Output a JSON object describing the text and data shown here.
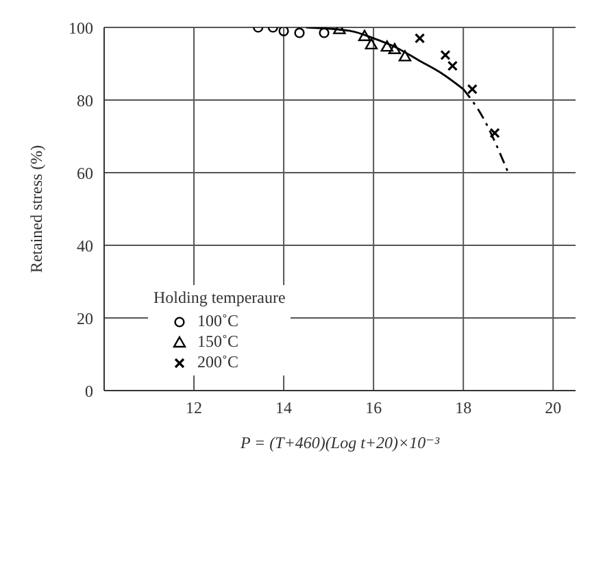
{
  "chart_data": {
    "type": "scatter",
    "xlabel": "P = (T+460)(Log t+20)×10⁻³",
    "ylabel": "Retained stress (%)",
    "legend_title": "Holding temperaure",
    "xlim": [
      10,
      20.5
    ],
    "xticks": [
      12,
      14,
      16,
      18,
      20
    ],
    "ylim": [
      0,
      100
    ],
    "yticks": [
      0,
      20,
      40,
      60,
      80,
      100
    ],
    "grid": true,
    "legend": "left",
    "series": [
      {
        "name": "100˚C",
        "color": "#000000",
        "marker": "circle",
        "x": [
          13.43,
          13.76,
          14.0,
          14.35,
          14.9
        ],
        "values": [
          100,
          100,
          99,
          98.5,
          98.5
        ]
      },
      {
        "name": "150˚C",
        "color": "#000000",
        "marker": "triangle",
        "x": [
          15.24,
          15.8,
          15.95,
          16.3,
          16.47,
          16.7
        ],
        "values": [
          99.5,
          97.6,
          95.3,
          94.7,
          94,
          92
        ]
      },
      {
        "name": "200˚C",
        "color": "#000000",
        "marker": "cross",
        "x": [
          17.03,
          17.6,
          17.76,
          18.2,
          18.7
        ],
        "values": [
          97,
          92.4,
          89.4,
          83,
          70.9
        ]
      },
      {
        "type": "line",
        "color": "#000000",
        "line_style": "solid",
        "marker": "none",
        "x": [
          14.5,
          15.5,
          16,
          16.5,
          17,
          17.5,
          18
        ],
        "values": [
          100,
          99,
          97,
          94.5,
          91,
          87.5,
          83
        ]
      },
      {
        "type": "line",
        "color": "#000000",
        "line_style": "dashed",
        "marker": "none",
        "x": [
          18,
          18.4,
          19
        ],
        "values": [
          83,
          76,
          60
        ]
      }
    ]
  }
}
